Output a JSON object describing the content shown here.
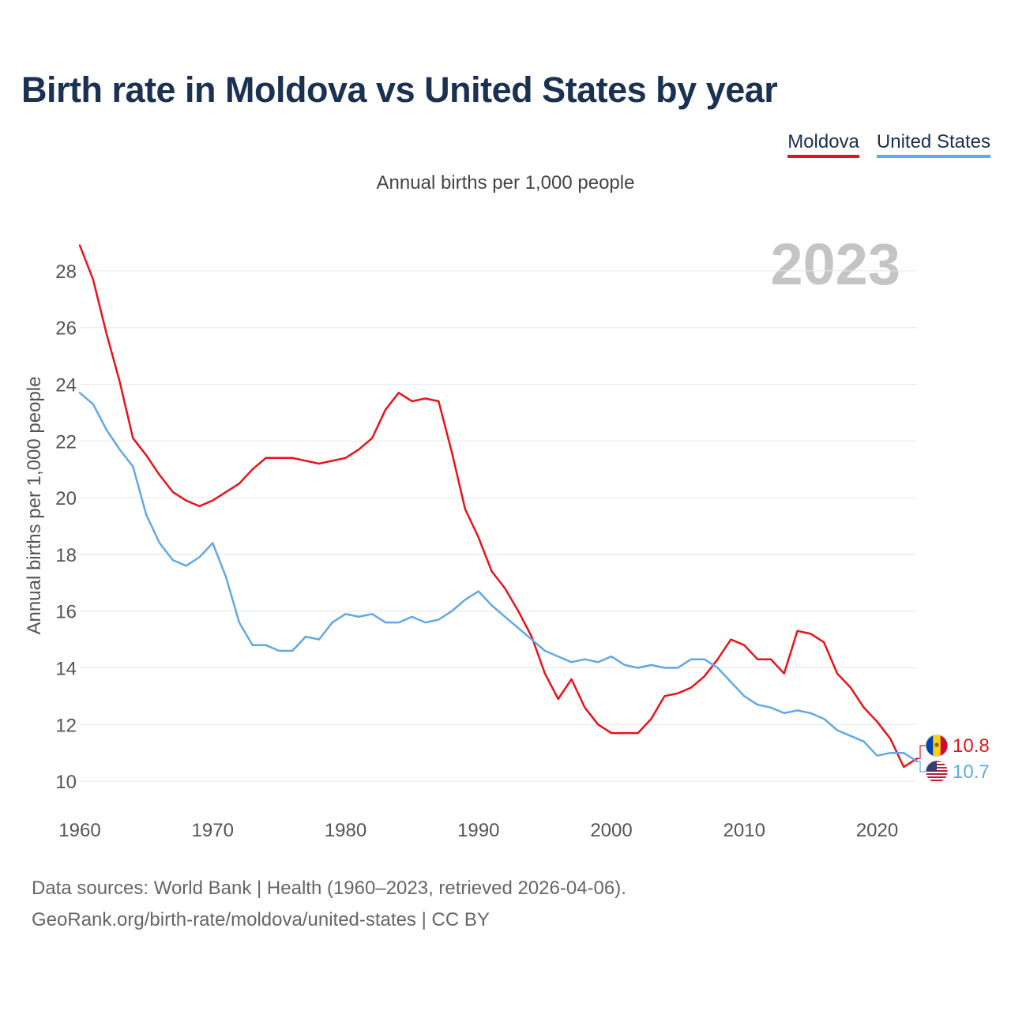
{
  "title": "Birth rate in Moldova vs United States by year",
  "subtitle": "Annual births per 1,000 people",
  "legend": [
    {
      "label": "Moldova",
      "color": "#e8131a"
    },
    {
      "label": "United States",
      "color": "#62a8e5"
    }
  ],
  "chart_data": {
    "type": "line",
    "title": "Birth rate in Moldova vs United States by year",
    "ylabel": "Annual births per 1,000 people",
    "xlabel": "",
    "xlim": [
      1960,
      2023
    ],
    "ylim": [
      9,
      29
    ],
    "x_ticks": [
      1960,
      1970,
      1980,
      1990,
      2000,
      2010,
      2020
    ],
    "y_ticks": [
      10,
      12,
      14,
      16,
      18,
      20,
      22,
      24,
      26,
      28
    ],
    "grid": true,
    "watermark_year": "2023",
    "x": [
      1960,
      1961,
      1962,
      1963,
      1964,
      1965,
      1966,
      1967,
      1968,
      1969,
      1970,
      1971,
      1972,
      1973,
      1974,
      1975,
      1976,
      1977,
      1978,
      1979,
      1980,
      1981,
      1982,
      1983,
      1984,
      1985,
      1986,
      1987,
      1988,
      1989,
      1990,
      1991,
      1992,
      1993,
      1994,
      1995,
      1996,
      1997,
      1998,
      1999,
      2000,
      2001,
      2002,
      2003,
      2004,
      2005,
      2006,
      2007,
      2008,
      2009,
      2010,
      2011,
      2012,
      2013,
      2014,
      2015,
      2016,
      2017,
      2018,
      2019,
      2020,
      2021,
      2022,
      2023
    ],
    "series": [
      {
        "name": "Moldova",
        "color": "#e8131a",
        "end_label": "10.8",
        "values": [
          28.9,
          27.7,
          25.8,
          24.1,
          22.1,
          21.5,
          20.8,
          20.2,
          19.9,
          19.7,
          19.9,
          20.2,
          20.5,
          21.0,
          21.4,
          21.4,
          21.4,
          21.3,
          21.2,
          21.3,
          21.4,
          21.7,
          22.1,
          23.1,
          23.7,
          23.4,
          23.5,
          23.4,
          21.6,
          19.6,
          18.6,
          17.4,
          16.8,
          16.0,
          15.1,
          13.8,
          12.9,
          13.6,
          12.6,
          12.0,
          11.7,
          11.7,
          11.7,
          12.2,
          13.0,
          13.1,
          13.3,
          13.7,
          14.3,
          15.0,
          14.8,
          14.3,
          14.3,
          13.8,
          15.3,
          15.2,
          14.9,
          13.8,
          13.3,
          12.6,
          12.1,
          11.5,
          10.5,
          10.8
        ]
      },
      {
        "name": "United States",
        "color": "#62a8e5",
        "end_label": "10.7",
        "values": [
          23.7,
          23.3,
          22.4,
          21.7,
          21.1,
          19.4,
          18.4,
          17.8,
          17.6,
          17.9,
          18.4,
          17.2,
          15.6,
          14.8,
          14.8,
          14.6,
          14.6,
          15.1,
          15.0,
          15.6,
          15.9,
          15.8,
          15.9,
          15.6,
          15.6,
          15.8,
          15.6,
          15.7,
          16.0,
          16.4,
          16.7,
          16.2,
          15.8,
          15.4,
          15.0,
          14.6,
          14.4,
          14.2,
          14.3,
          14.2,
          14.4,
          14.1,
          14.0,
          14.1,
          14.0,
          14.0,
          14.3,
          14.3,
          14.0,
          13.5,
          13.0,
          12.7,
          12.6,
          12.4,
          12.5,
          12.4,
          12.2,
          11.8,
          11.6,
          11.4,
          10.9,
          11.0,
          11.0,
          10.7
        ]
      }
    ]
  },
  "footer": {
    "sources": "Data sources: World Bank | Health (1960–2023, retrieved 2026-04-06).",
    "attribution": "GeoRank.org/birth-rate/moldova/united-states | CC BY"
  }
}
